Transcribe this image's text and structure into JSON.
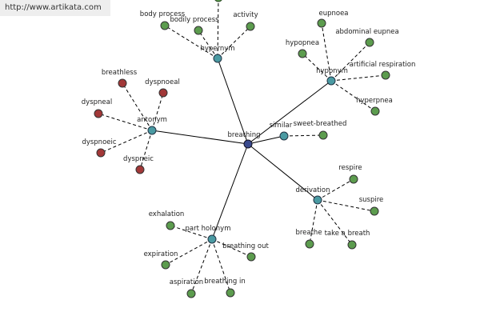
{
  "watermark": "http://www.artikata.com",
  "center": {
    "label": "breathing"
  },
  "groups": [
    {
      "relation": "hypernym",
      "leaves": [
        "body process",
        "bodily process",
        "activity"
      ]
    },
    {
      "relation": "hyponym",
      "leaves": [
        "eupnoea",
        "abdominal eupnea",
        "hypopnea",
        "artificial respiration",
        "hyperpnea"
      ]
    },
    {
      "relation": "antonym",
      "leaves": [
        "breathless",
        "dyspnoeal",
        "dyspneal",
        "dyspnoeic",
        "dyspneic"
      ]
    },
    {
      "relation": "similar",
      "leaves": [
        "sweet-breathed"
      ]
    },
    {
      "relation": "derivation",
      "leaves": [
        "respire",
        "suspire",
        "breathe",
        "take a breath"
      ]
    },
    {
      "relation": "part holonym",
      "leaves": [
        "exhalation",
        "expiration",
        "breathing out",
        "aspiration",
        "breathing in"
      ]
    }
  ]
}
